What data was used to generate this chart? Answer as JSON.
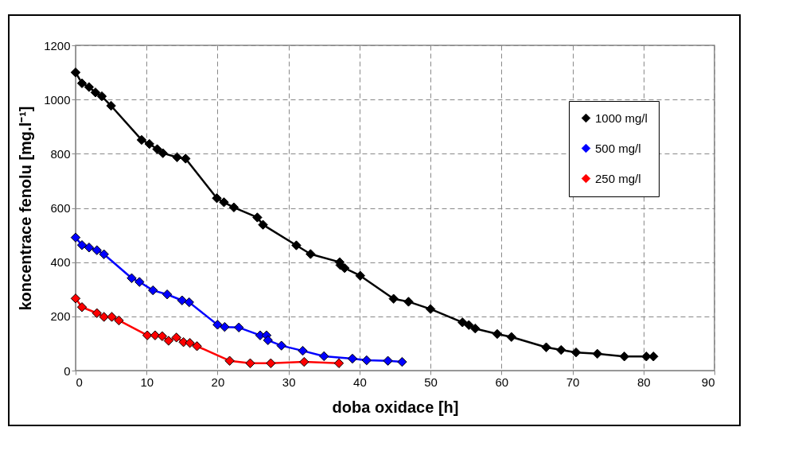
{
  "chart_data": {
    "type": "line",
    "xlabel": "doba oxidace [h]",
    "ylabel": "koncentrace fenolu [mg.l⁻¹]",
    "xlim": [
      0,
      90
    ],
    "xticks": [
      0,
      10,
      20,
      30,
      40,
      50,
      60,
      70,
      80,
      90
    ],
    "ylim": [
      0,
      1200
    ],
    "yticks": [
      0,
      200,
      400,
      600,
      800,
      1000,
      1200
    ],
    "grid": true,
    "legend": "top right",
    "marker": "diamond",
    "line_style": "solid",
    "series": [
      {
        "name": "1000 mg/l",
        "color": "#000000",
        "x": [
          0,
          0.9,
          1.9,
          2.8,
          3.7,
          5,
          9.3,
          10.4,
          11.5,
          12.3,
          14.3,
          15.5,
          19.9,
          20.9,
          22.3,
          25.6,
          26.4,
          31.1,
          33.1,
          37.2,
          37.3,
          37.9,
          40.1,
          44.8,
          46.9,
          50,
          54.5,
          55.4,
          56.3,
          59.4,
          61.4,
          66.3,
          68.4,
          70.5,
          73.5,
          77.3,
          80.4,
          81.4
        ],
        "values": [
          1100,
          1060,
          1046,
          1026,
          1012,
          977,
          851,
          836,
          817,
          802,
          787,
          782,
          636,
          621,
          602,
          565,
          538,
          462,
          430,
          400,
          389,
          378,
          350,
          265,
          254,
          227,
          178,
          168,
          155,
          135,
          124,
          86,
          76,
          67,
          62,
          52,
          52,
          52
        ]
      },
      {
        "name": "500 mg/l",
        "color": "#0000ff",
        "x": [
          0,
          0.9,
          1.9,
          3,
          4,
          7.9,
          9,
          10.9,
          12.9,
          15,
          16,
          20,
          21,
          23,
          26,
          26.9,
          27.1,
          29,
          32,
          35,
          39,
          41,
          44,
          46
        ],
        "values": [
          491,
          463,
          454,
          444,
          429,
          341,
          327,
          296,
          281,
          259,
          252,
          169,
          161,
          159,
          130,
          130,
          112,
          92,
          73,
          53,
          44,
          38,
          36,
          32
        ]
      },
      {
        "name": "250 mg/l",
        "color": "#ff0000",
        "x": [
          0,
          0.9,
          3,
          4,
          5.1,
          6.1,
          10.1,
          11.2,
          12.2,
          13.1,
          14.2,
          15.2,
          16.1,
          17.1,
          21.7,
          24.6,
          27.5,
          32.2,
          37.1
        ],
        "values": [
          266,
          234,
          212,
          198,
          198,
          185,
          130,
          130,
          127,
          110,
          122,
          105,
          102,
          90,
          36,
          27,
          27,
          32,
          27
        ]
      }
    ]
  }
}
